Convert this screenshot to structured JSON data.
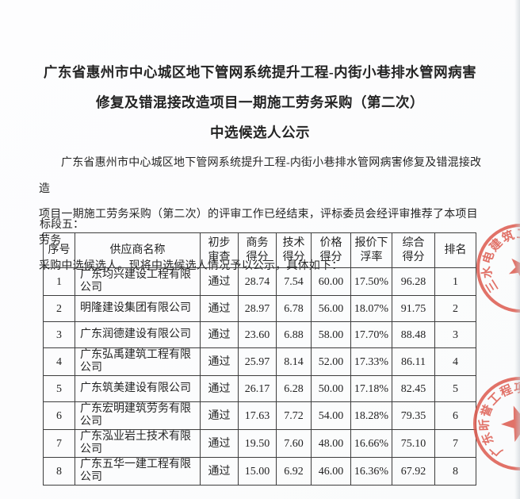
{
  "document": {
    "title_lines": [
      "广东省惠州市中心城区地下管网系统提升工程-内街小巷排水管网病害",
      "修复及错混接改造项目一期施工劳务采购（第二次）",
      "中选候选人公示"
    ],
    "paragraph_lines": [
      "广东省惠州市中心城区地下管网系统提升工程-内街小巷排水管网病害修复及错混接改造",
      "项目一期施工劳务采购（第二次）的评审工作已经结束，评标委员会经评审推荐了本项目劳务",
      "采购中选候选人。现将中选候选人情况予以公示，具体如下："
    ],
    "section_label": "标段五："
  },
  "table": {
    "headers": [
      "序号",
      "供应商名称",
      "初步\n审查",
      "商务\n得分",
      "技术\n得分",
      "价格\n得分",
      "报价下\n浮率",
      "综合\n得分",
      "排名"
    ],
    "rows": [
      [
        "1",
        "广东均兴建设工程有限公司",
        "通过",
        "28.74",
        "7.54",
        "60.00",
        "17.50%",
        "96.28",
        "1"
      ],
      [
        "2",
        "明隆建设集团有限公司",
        "通过",
        "28.97",
        "6.78",
        "56.00",
        "18.07%",
        "91.75",
        "2"
      ],
      [
        "3",
        "广东润德建设有限公司",
        "通过",
        "23.60",
        "6.88",
        "58.00",
        "17.70%",
        "88.48",
        "3"
      ],
      [
        "4",
        "广东弘禹建筑工程有限公司",
        "通过",
        "25.97",
        "8.14",
        "52.00",
        "17.33%",
        "86.11",
        "4"
      ],
      [
        "5",
        "广东筑美建设有限公司",
        "通过",
        "26.17",
        "6.28",
        "50.00",
        "17.18%",
        "82.45",
        "5"
      ],
      [
        "6",
        "广东宏明建筑劳务有限公司",
        "通过",
        "17.63",
        "7.72",
        "54.00",
        "18.28%",
        "79.35",
        "6"
      ],
      [
        "7",
        "广东泓业岩土技术有限公司",
        "通过",
        "19.50",
        "7.60",
        "48.00",
        "16.66%",
        "75.10",
        "7"
      ],
      [
        "8",
        "广东五华一建工程有限公司",
        "通过",
        "15.00",
        "6.92",
        "46.00",
        "16.36%",
        "67.92",
        "8"
      ]
    ]
  },
  "stamps": {
    "color": "#dc5448",
    "upper": {
      "chars": [
        "三",
        "水",
        "电",
        "建",
        "筑",
        "工"
      ]
    },
    "lower": {
      "chars": [
        "广",
        "东",
        "昕",
        "誉",
        "工",
        "程",
        "项"
      ]
    }
  }
}
